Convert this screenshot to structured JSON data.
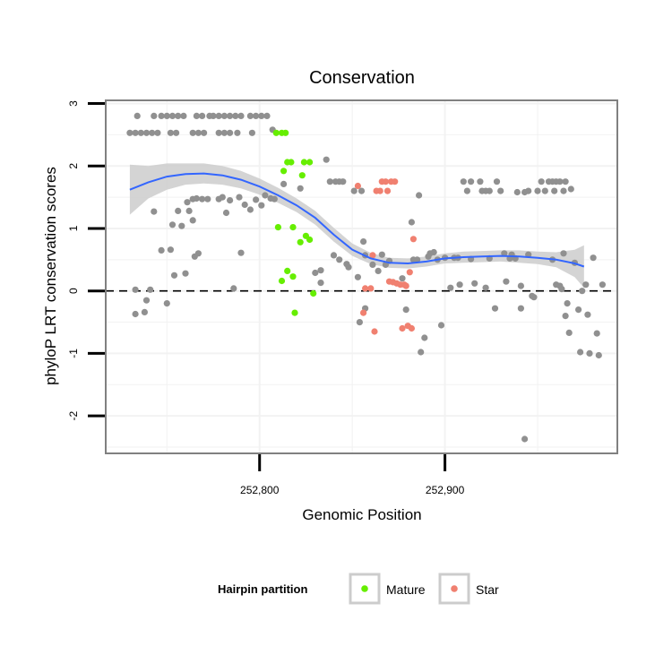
{
  "chart_data": {
    "type": "scatter",
    "title": "Conservation",
    "xlabel": "Genomic Position",
    "ylabel": "phyloP LRT conservation scores",
    "xlim": [
      252717,
      252993
    ],
    "ylim": [
      -2.6,
      3.05
    ],
    "x_ticks": [
      {
        "value": 252800,
        "label": "252,800"
      },
      {
        "value": 252900,
        "label": "252,900"
      }
    ],
    "y_ticks": [
      {
        "value": -2,
        "label": "-2"
      },
      {
        "value": -1,
        "label": "-1"
      },
      {
        "value": 0,
        "label": "0"
      },
      {
        "value": 1,
        "label": "1"
      },
      {
        "value": 2,
        "label": "2"
      },
      {
        "value": 3,
        "label": "3"
      }
    ],
    "reference_line": {
      "y": 0,
      "style": "dashed"
    },
    "grid": true,
    "legend": {
      "title": "Hairpin partition",
      "position": "bottom",
      "entries": [
        {
          "label": "Mature",
          "color": "#66ee00"
        },
        {
          "label": "Star",
          "color": "#f08070"
        }
      ]
    },
    "colors": {
      "other": "#909090",
      "mature": "#66ee00",
      "star": "#f08070",
      "smooth_line": "#3366ff",
      "confidence_band": "#cccccc",
      "panel_border": "#808080",
      "grid": "#f2f2f2"
    },
    "series": [
      {
        "name": "Other",
        "points": [
          [
            252730,
            2.53
          ],
          [
            252733,
            2.53
          ],
          [
            252736,
            2.53
          ],
          [
            252739,
            2.53
          ],
          [
            252742,
            2.53
          ],
          [
            252745,
            2.53
          ],
          [
            252734,
            2.8
          ],
          [
            252743,
            2.8
          ],
          [
            252747,
            2.8
          ],
          [
            252750,
            2.8
          ],
          [
            252753,
            2.8
          ],
          [
            252756,
            2.8
          ],
          [
            252759,
            2.8
          ],
          [
            252752,
            2.53
          ],
          [
            252755,
            2.53
          ],
          [
            252764,
            2.53
          ],
          [
            252767,
            2.53
          ],
          [
            252770,
            2.53
          ],
          [
            252766,
            2.8
          ],
          [
            252769,
            2.8
          ],
          [
            252773,
            2.8
          ],
          [
            252775,
            2.8
          ],
          [
            252778,
            2.8
          ],
          [
            252781,
            2.8
          ],
          [
            252784,
            2.8
          ],
          [
            252787,
            2.8
          ],
          [
            252790,
            2.8
          ],
          [
            252795,
            2.8
          ],
          [
            252798,
            2.8
          ],
          [
            252801,
            2.8
          ],
          [
            252804,
            2.8
          ],
          [
            252778,
            2.53
          ],
          [
            252781,
            2.53
          ],
          [
            252784,
            2.53
          ],
          [
            252788,
            2.53
          ],
          [
            252796,
            2.53
          ],
          [
            252807,
            2.58
          ],
          [
            252733,
            0.02
          ],
          [
            252733,
            -0.37
          ],
          [
            252738,
            -0.34
          ],
          [
            252739,
            -0.15
          ],
          [
            252741,
            0.02
          ],
          [
            252743,
            1.27
          ],
          [
            252747,
            0.65
          ],
          [
            252750,
            -0.2
          ],
          [
            252752,
            0.66
          ],
          [
            252753,
            1.06
          ],
          [
            252754,
            0.25
          ],
          [
            252756,
            1.28
          ],
          [
            252758,
            1.04
          ],
          [
            252760,
            0.28
          ],
          [
            252761,
            1.42
          ],
          [
            252762,
            1.28
          ],
          [
            252764,
            1.47
          ],
          [
            252764,
            1.13
          ],
          [
            252765,
            0.55
          ],
          [
            252766,
            1.48
          ],
          [
            252767,
            0.6
          ],
          [
            252769,
            1.47
          ],
          [
            252772,
            1.47
          ],
          [
            252778,
            1.47
          ],
          [
            252780,
            1.5
          ],
          [
            252782,
            1.25
          ],
          [
            252784,
            1.45
          ],
          [
            252786,
            0.04
          ],
          [
            252789,
            1.5
          ],
          [
            252790,
            0.61
          ],
          [
            252792,
            1.38
          ],
          [
            252795,
            1.3
          ],
          [
            252798,
            1.46
          ],
          [
            252801,
            1.37
          ],
          [
            252803,
            1.53
          ],
          [
            252806,
            1.48
          ],
          [
            252808,
            1.47
          ],
          [
            252813,
            1.71
          ],
          [
            252822,
            1.64
          ],
          [
            252830,
            0.29
          ],
          [
            252833,
            0.13
          ],
          [
            252833,
            0.33
          ],
          [
            252836,
            2.1
          ],
          [
            252838,
            1.75
          ],
          [
            252841,
            1.75
          ],
          [
            252843,
            1.75
          ],
          [
            252845,
            1.75
          ],
          [
            252840,
            0.57
          ],
          [
            252843,
            0.5
          ],
          [
            252847,
            0.43
          ],
          [
            252848,
            0.38
          ],
          [
            252851,
            1.6
          ],
          [
            252853,
            0.22
          ],
          [
            252855,
            1.6
          ],
          [
            252856,
            0.79
          ],
          [
            252857,
            0.57
          ],
          [
            252854,
            -0.5
          ],
          [
            252857,
            -0.28
          ],
          [
            252861,
            0.42
          ],
          [
            252864,
            0.32
          ],
          [
            252866,
            0.58
          ],
          [
            252868,
            0.42
          ],
          [
            252870,
            0.48
          ],
          [
            252877,
            0.2
          ],
          [
            252879,
            -0.3
          ],
          [
            252882,
            1.1
          ],
          [
            252883,
            0.5
          ],
          [
            252885,
            0.5
          ],
          [
            252886,
            1.53
          ],
          [
            252887,
            -0.98
          ],
          [
            252889,
            -0.75
          ],
          [
            252891,
            0.55
          ],
          [
            252892,
            0.6
          ],
          [
            252894,
            0.62
          ],
          [
            252896,
            0.5
          ],
          [
            252898,
            -0.55
          ],
          [
            252900,
            0.53
          ],
          [
            252903,
            0.05
          ],
          [
            252905,
            0.53
          ],
          [
            252907,
            0.53
          ],
          [
            252908,
            0.1
          ],
          [
            252910,
            1.75
          ],
          [
            252912,
            1.6
          ],
          [
            252914,
            1.75
          ],
          [
            252914,
            0.51
          ],
          [
            252916,
            0.12
          ],
          [
            252919,
            1.75
          ],
          [
            252920,
            1.6
          ],
          [
            252922,
            1.6
          ],
          [
            252924,
            1.6
          ],
          [
            252922,
            0.05
          ],
          [
            252924,
            0.52
          ],
          [
            252927,
            -0.28
          ],
          [
            252928,
            1.75
          ],
          [
            252930,
            1.6
          ],
          [
            252932,
            0.6
          ],
          [
            252933,
            0.15
          ],
          [
            252935,
            0.52
          ],
          [
            252936,
            0.58
          ],
          [
            252938,
            0.52
          ],
          [
            252939,
            1.58
          ],
          [
            252941,
            0.08
          ],
          [
            252941,
            -0.28
          ],
          [
            252943,
            1.58
          ],
          [
            252945,
            1.6
          ],
          [
            252945,
            0.58
          ],
          [
            252943,
            -2.37
          ],
          [
            252947,
            -0.08
          ],
          [
            252948,
            -0.1
          ],
          [
            252950,
            1.6
          ],
          [
            252952,
            1.75
          ],
          [
            252954,
            1.6
          ],
          [
            252956,
            1.75
          ],
          [
            252958,
            1.75
          ],
          [
            252959,
            1.6
          ],
          [
            252960,
            1.75
          ],
          [
            252962,
            1.75
          ],
          [
            252964,
            1.6
          ],
          [
            252965,
            1.75
          ],
          [
            252958,
            0.5
          ],
          [
            252960,
            0.1
          ],
          [
            252962,
            0.08
          ],
          [
            252963,
            0.03
          ],
          [
            252964,
            0.6
          ],
          [
            252965,
            -0.4
          ],
          [
            252966,
            -0.2
          ],
          [
            252967,
            -0.67
          ],
          [
            252968,
            1.63
          ],
          [
            252970,
            0.45
          ],
          [
            252972,
            -0.3
          ],
          [
            252973,
            -0.98
          ],
          [
            252974,
            0.0
          ],
          [
            252976,
            0.1
          ],
          [
            252977,
            -0.38
          ],
          [
            252978,
            -1.0
          ],
          [
            252980,
            0.53
          ],
          [
            252982,
            -0.68
          ],
          [
            252983,
            -1.03
          ],
          [
            252985,
            0.1
          ]
        ]
      },
      {
        "name": "Mature",
        "points": [
          [
            252809,
            2.53
          ],
          [
            252812,
            2.53
          ],
          [
            252814,
            2.53
          ],
          [
            252810,
            1.02
          ],
          [
            252812,
            0.16
          ],
          [
            252813,
            1.92
          ],
          [
            252815,
            0.32
          ],
          [
            252817,
            2.06
          ],
          [
            252815,
            2.06
          ],
          [
            252818,
            0.23
          ],
          [
            252818,
            1.02
          ],
          [
            252819,
            -0.35
          ],
          [
            252822,
            0.78
          ],
          [
            252823,
            1.85
          ],
          [
            252824,
            2.06
          ],
          [
            252825,
            0.88
          ],
          [
            252827,
            0.82
          ],
          [
            252827,
            2.06
          ],
          [
            252829,
            -0.04
          ]
        ]
      },
      {
        "name": "Star",
        "points": [
          [
            252853,
            1.68
          ],
          [
            252856,
            -0.35
          ],
          [
            252857,
            0.04
          ],
          [
            252860,
            0.04
          ],
          [
            252861,
            0.57
          ],
          [
            252862,
            -0.65
          ],
          [
            252863,
            1.6
          ],
          [
            252865,
            1.6
          ],
          [
            252866,
            1.75
          ],
          [
            252868,
            1.75
          ],
          [
            252870,
            0.15
          ],
          [
            252871,
            1.75
          ],
          [
            252872,
            0.14
          ],
          [
            252874,
            0.12
          ],
          [
            252876,
            0.1
          ],
          [
            252878,
            0.1
          ],
          [
            252879,
            0.08
          ],
          [
            252880,
            -0.56
          ],
          [
            252882,
            -0.6
          ],
          [
            252883,
            0.83
          ],
          [
            252877,
            -0.6
          ],
          [
            252881,
            0.3
          ],
          [
            252873,
            1.75
          ],
          [
            252869,
            1.6
          ]
        ]
      },
      {
        "name": "Smooth fit",
        "x": [
          252730,
          252740,
          252750,
          252760,
          252770,
          252780,
          252790,
          252800,
          252810,
          252820,
          252830,
          252840,
          252850,
          252860,
          252870,
          252880,
          252890,
          252900,
          252910,
          252920,
          252930,
          252940,
          252950,
          252960,
          252970,
          252975
        ],
        "y": [
          1.62,
          1.74,
          1.83,
          1.87,
          1.88,
          1.85,
          1.78,
          1.67,
          1.53,
          1.37,
          1.17,
          0.9,
          0.66,
          0.52,
          0.45,
          0.44,
          0.47,
          0.52,
          0.54,
          0.55,
          0.56,
          0.55,
          0.53,
          0.5,
          0.44,
          0.39
        ],
        "lower": [
          1.22,
          1.48,
          1.62,
          1.7,
          1.72,
          1.7,
          1.64,
          1.54,
          1.41,
          1.26,
          1.06,
          0.79,
          0.56,
          0.43,
          0.37,
          0.36,
          0.39,
          0.44,
          0.45,
          0.46,
          0.47,
          0.45,
          0.43,
          0.38,
          0.22,
          0.05
        ],
        "upper": [
          2.02,
          2.0,
          2.04,
          2.04,
          2.04,
          2.0,
          1.92,
          1.8,
          1.65,
          1.48,
          1.28,
          1.01,
          0.76,
          0.61,
          0.53,
          0.52,
          0.55,
          0.6,
          0.63,
          0.64,
          0.65,
          0.65,
          0.63,
          0.62,
          0.66,
          0.73
        ]
      }
    ]
  }
}
